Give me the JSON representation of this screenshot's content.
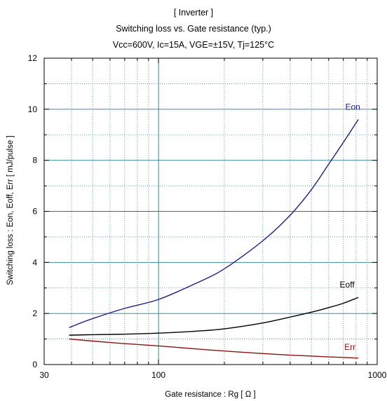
{
  "chart_data": {
    "type": "line",
    "title": "[ Inverter ]",
    "subtitle": "Switching loss  vs.  Gate resistance (typ.)",
    "conditions": "Vcc=600V, Ic=15A, VGE=±15V, Tj=125°C",
    "xlabel": "Gate resistance  : Rg  [    Ω ]",
    "ylabel": "Switching loss  : Eon, Eoff, Err  [ mJ/pulse ]",
    "x_scale": "log",
    "xlim": [
      30,
      1000
    ],
    "ylim": [
      0,
      12
    ],
    "x_ticks": [
      {
        "value": 30,
        "label": "30"
      },
      {
        "value": 100,
        "label": "100"
      },
      {
        "value": 1000,
        "label": "1000"
      }
    ],
    "y_ticks": [
      {
        "value": 0,
        "label": "0"
      },
      {
        "value": 2,
        "label": "2"
      },
      {
        "value": 4,
        "label": "4"
      },
      {
        "value": 6,
        "label": "6"
      },
      {
        "value": 8,
        "label": "8"
      },
      {
        "value": 10,
        "label": "10"
      },
      {
        "value": 12,
        "label": "12"
      }
    ],
    "grid": true,
    "series": [
      {
        "name": "Eon",
        "color": "#1f1f8a",
        "x": [
          39,
          50,
          70,
          100,
          150,
          200,
          300,
          400,
          500,
          600,
          700,
          820
        ],
        "y": [
          1.45,
          1.8,
          2.2,
          2.55,
          3.2,
          3.75,
          4.85,
          5.85,
          6.85,
          7.85,
          8.7,
          9.6
        ]
      },
      {
        "name": "Eoff",
        "color": "#000000",
        "x": [
          39,
          50,
          70,
          100,
          150,
          200,
          300,
          400,
          500,
          600,
          700,
          820
        ],
        "y": [
          1.15,
          1.17,
          1.19,
          1.23,
          1.31,
          1.4,
          1.63,
          1.86,
          2.05,
          2.23,
          2.4,
          2.63
        ]
      },
      {
        "name": "Err",
        "color": "#8a1414",
        "x": [
          39,
          50,
          70,
          100,
          150,
          200,
          300,
          400,
          500,
          600,
          700,
          820
        ],
        "y": [
          1.0,
          0.92,
          0.82,
          0.73,
          0.61,
          0.53,
          0.43,
          0.37,
          0.33,
          0.3,
          0.28,
          0.25
        ]
      }
    ]
  }
}
